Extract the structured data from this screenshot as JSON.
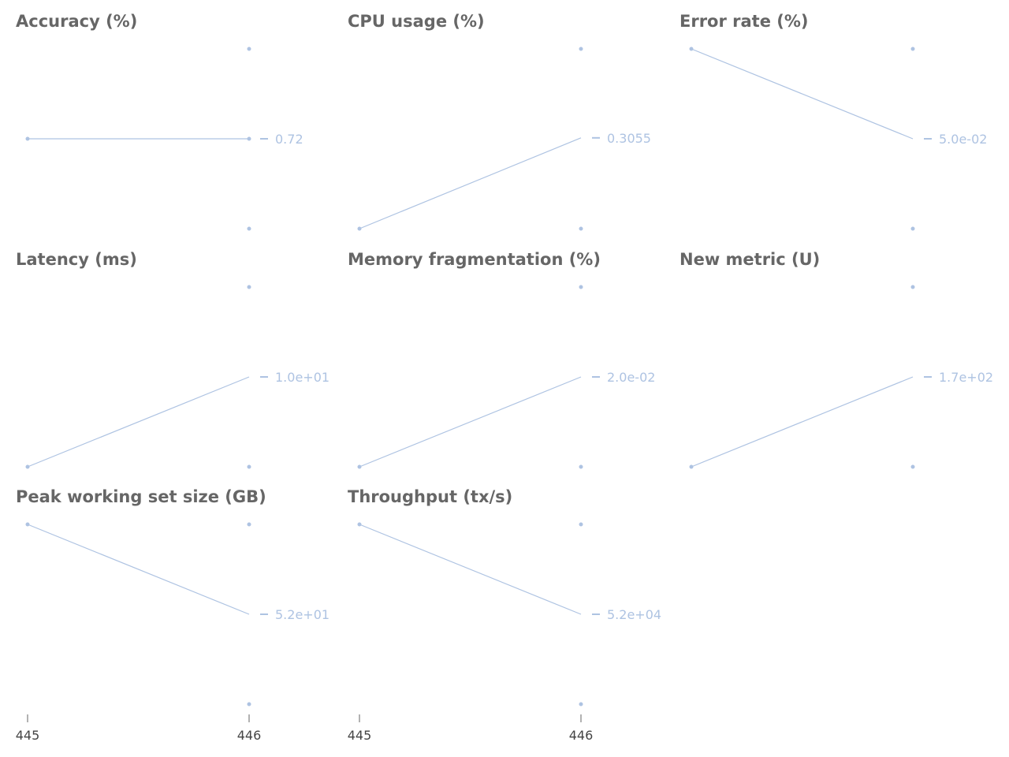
{
  "accent_color": "#aec3e2",
  "tick_color": "#999999",
  "chart_data": [
    {
      "type": "line",
      "title": "Accuracy (%)",
      "x": [
        445,
        446
      ],
      "values": [
        0.72,
        0.72
      ],
      "value_label": "0.72",
      "ylim": [
        0.71,
        0.73
      ]
    },
    {
      "type": "line",
      "title": "CPU usage (%)",
      "x": [
        445,
        446
      ],
      "values": [
        0.281,
        0.3055
      ],
      "value_label": "0.3055",
      "ylim": [
        0.281,
        0.3295
      ]
    },
    {
      "type": "line",
      "title": "Error rate (%)",
      "x": [
        445,
        446
      ],
      "values": [
        0.06,
        0.05
      ],
      "value_label": "5.0e-02",
      "ylim": [
        0.04,
        0.06
      ]
    },
    {
      "type": "line",
      "title": "Latency (ms)",
      "x": [
        445,
        446
      ],
      "values": [
        8,
        10
      ],
      "value_label": "1.0e+01",
      "ylim": [
        8,
        12
      ]
    },
    {
      "type": "line",
      "title": "Memory fragmentation (%)",
      "x": [
        445,
        446
      ],
      "values": [
        0.015,
        0.02
      ],
      "value_label": "2.0e-02",
      "ylim": [
        0.015,
        0.025
      ]
    },
    {
      "type": "line",
      "title": "New metric (U)",
      "x": [
        445,
        446
      ],
      "values": [
        160,
        170
      ],
      "value_label": "1.7e+02",
      "ylim": [
        160,
        180
      ]
    },
    {
      "type": "line",
      "title": "Peak working set size (GB)",
      "x": [
        445,
        446
      ],
      "values": [
        54,
        52
      ],
      "value_label": "5.2e+01",
      "ylim": [
        50,
        54
      ]
    },
    {
      "type": "line",
      "title": "Throughput (tx/s)",
      "x": [
        445,
        446
      ],
      "values": [
        54000,
        52000
      ],
      "value_label": "5.2e+04",
      "ylim": [
        50000,
        54000
      ]
    }
  ],
  "x_ticks": [
    "445",
    "446"
  ]
}
